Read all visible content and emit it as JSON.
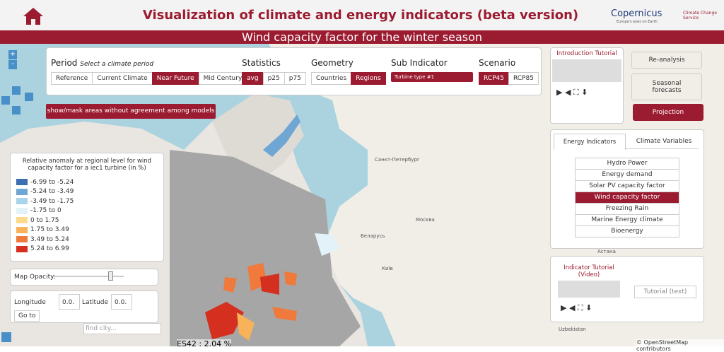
{
  "header": {
    "title": "Visualization of climate and energy indicators (beta version)",
    "logo_left": "Copernicus",
    "logo_left_sub": "Europe's eyes on Earth",
    "logo_right": "Climate Change Service"
  },
  "banner": {
    "title": "Wind capacity factor for the winter season"
  },
  "controls": {
    "period": {
      "label": "Period",
      "hint": "Select a climate period",
      "options": [
        "Reference",
        "Current Climate",
        "Near Future",
        "Mid Century"
      ],
      "active": 2
    },
    "statistics": {
      "label": "Statistics",
      "options": [
        "avg",
        "p25",
        "p75"
      ],
      "active": 0
    },
    "geometry": {
      "label": "Geometry",
      "options": [
        "Countries",
        "Regions"
      ],
      "active": 1
    },
    "sub_indicator": {
      "label": "Sub Indicator",
      "selected": "Turbine type #1"
    },
    "scenario": {
      "label": "Scenario",
      "options": [
        "RCP45",
        "RCP85"
      ],
      "active": 0
    },
    "mask_button": "show/mask areas without agreement among models"
  },
  "legend": {
    "title": "Relative anomaly at regional level for wind capacity factor for a iec1 turbine (in %)",
    "items": [
      {
        "label": "-6.99 to -5.24",
        "color": "#3b6fb2"
      },
      {
        "label": "-5.24 to -3.49",
        "color": "#6fa6d3"
      },
      {
        "label": "-3.49 to -1.75",
        "color": "#aad4e9"
      },
      {
        "label": "-1.75 to 0",
        "color": "#e2f2f8"
      },
      {
        "label": "0 to 1.75",
        "color": "#fcd98c"
      },
      {
        "label": "1.75 to 3.49",
        "color": "#f7b25a"
      },
      {
        "label": "3.49 to 5.24",
        "color": "#ef7a3b"
      },
      {
        "label": "5.24 to 6.99",
        "color": "#d5301f"
      }
    ]
  },
  "map_tools": {
    "opacity_label": "Map Opacity:",
    "longitude_label": "Longitude",
    "longitude_value": "0.0.",
    "latitude_label": "Latitude",
    "latitude_value": "0.0.",
    "go_button": "Go to",
    "city_placeholder": "find city...",
    "hover_info": "ES42 : 2.04 %",
    "zoom_in": "+",
    "zoom_out": "-"
  },
  "map_labels": [
    "Санкт-Петербург",
    "Москва",
    "Беларусь",
    "Київ",
    "Астана",
    "Uzbekistan"
  ],
  "attribution": "© OpenStreetMap contributors",
  "right_panel": {
    "intro_tutorial": "Introduction Tutorial",
    "datasets": [
      "Re-analysis",
      "Seasonal forecasts",
      "Projection"
    ],
    "active_dataset": 2,
    "tabs": [
      "Energy Indicators",
      "Climate Variables"
    ],
    "indicators": [
      "Hydro Power",
      "Energy demand",
      "Solar PV capacity factor",
      "Wind capacity factor",
      "Freezing Rain",
      "Marine Energy climate",
      "Bioenergy"
    ],
    "active_indicator": 3,
    "indicator_tutorial": "Indicator Tutorial (Video)",
    "text_tutorial": "Tutorial (text)"
  }
}
